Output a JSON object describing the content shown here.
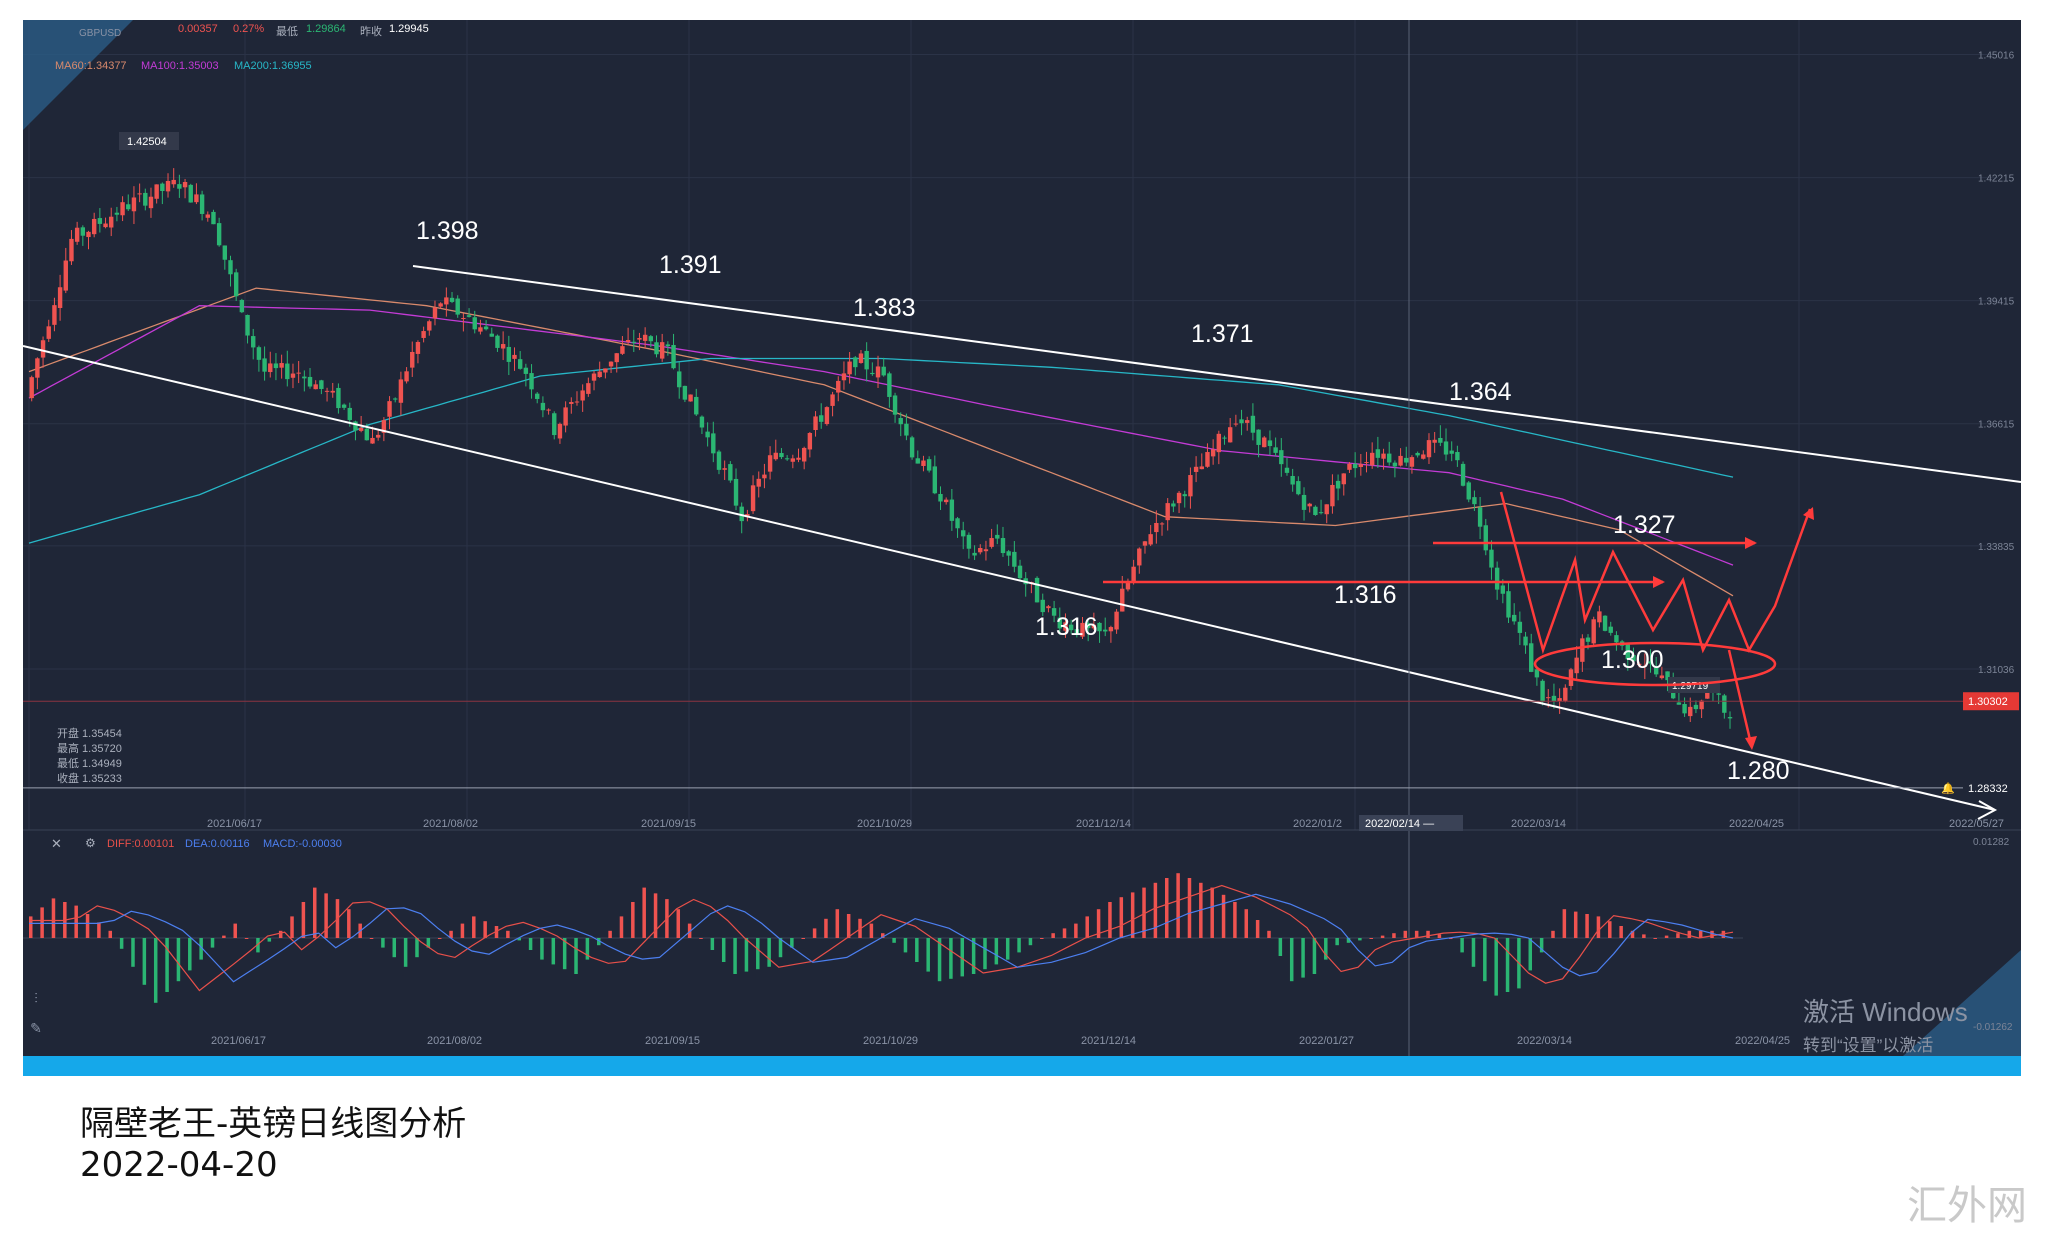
{
  "header": {
    "symbol": "GBPUSD",
    "change": "0.00357",
    "change_pct": "0.27%",
    "low_label": "最低",
    "low_value": "1.29864",
    "prev_close_label": "昨收",
    "prev_close_value": "1.29945",
    "ma60": "MA60:1.34377",
    "ma100": "MA100:1.35003",
    "ma200": "MA200:1.36955"
  },
  "ohlc_panel": {
    "open": "开盘 1.35454",
    "high": "最高 1.35720",
    "low": "最低 1.34949",
    "close": "收盘 1.35233"
  },
  "colors": {
    "background": "#1f2637",
    "bull": "#ef5350",
    "bear": "#2bb673",
    "ma60": "#d98a6c",
    "ma100": "#c33bd6",
    "ma200": "#27b7c7",
    "annotation": "#ff3b3b",
    "channel": "#ffffff",
    "diff": "#e8504a",
    "dea": "#4c7ff0"
  },
  "chart_data": {
    "type": "candlestick",
    "title": "",
    "y_ticks": [
      "1.45016",
      "1.42215",
      "1.39415",
      "1.36615",
      "1.33835",
      "1.31036"
    ],
    "ylim": [
      1.276,
      1.458
    ],
    "x_tick_labels": [
      "2021/06/17",
      "2021/08/02",
      "2021/09/15",
      "2021/10/29",
      "2021/12/14",
      "2022/01/2",
      "2022/03/14",
      "2022/04/25",
      "2022/05/27"
    ],
    "crosshair_date": "2022/02/14 —",
    "current_price": "1.30302",
    "alert_price": "1.28332",
    "high_marker": "1.42504",
    "low_marker": "1.29719",
    "annotations": [
      "1.398",
      "1.391",
      "1.383",
      "1.371",
      "1.364",
      "1.316",
      "1.316",
      "1.327",
      "1.300",
      "1.280"
    ],
    "price_anchors": [
      [
        0,
        1.372
      ],
      [
        8,
        1.408
      ],
      [
        18,
        1.416
      ],
      [
        27,
        1.421
      ],
      [
        33,
        1.413
      ],
      [
        38,
        1.39
      ],
      [
        42,
        1.378
      ],
      [
        48,
        1.378
      ],
      [
        55,
        1.371
      ],
      [
        61,
        1.362
      ],
      [
        65,
        1.372
      ],
      [
        68,
        1.382
      ],
      [
        73,
        1.394
      ],
      [
        78,
        1.39
      ],
      [
        83,
        1.385
      ],
      [
        88,
        1.378
      ],
      [
        93,
        1.365
      ],
      [
        98,
        1.374
      ],
      [
        103,
        1.381
      ],
      [
        108,
        1.386
      ],
      [
        113,
        1.382
      ],
      [
        118,
        1.368
      ],
      [
        123,
        1.355
      ],
      [
        126,
        1.345
      ],
      [
        131,
        1.358
      ],
      [
        136,
        1.36
      ],
      [
        141,
        1.37
      ],
      [
        146,
        1.381
      ],
      [
        151,
        1.377
      ],
      [
        156,
        1.36
      ],
      [
        161,
        1.35
      ],
      [
        166,
        1.336
      ],
      [
        171,
        1.34
      ],
      [
        176,
        1.33
      ],
      [
        181,
        1.322
      ],
      [
        186,
        1.319
      ],
      [
        190,
        1.318
      ],
      [
        194,
        1.33
      ],
      [
        198,
        1.342
      ],
      [
        203,
        1.35
      ],
      [
        208,
        1.358
      ],
      [
        213,
        1.368
      ],
      [
        218,
        1.362
      ],
      [
        223,
        1.352
      ],
      [
        227,
        1.345
      ],
      [
        232,
        1.355
      ],
      [
        237,
        1.36
      ],
      [
        242,
        1.358
      ],
      [
        247,
        1.361
      ],
      [
        251,
        1.36
      ],
      [
        256,
        1.344
      ],
      [
        259,
        1.33
      ],
      [
        263,
        1.318
      ],
      [
        267,
        1.304
      ],
      [
        270,
        1.302
      ],
      [
        274,
        1.316
      ],
      [
        277,
        1.322
      ],
      [
        281,
        1.315
      ],
      [
        285,
        1.312
      ],
      [
        290,
        1.305
      ],
      [
        293,
        1.3
      ],
      [
        296,
        1.306
      ],
      [
        299,
        1.301
      ]
    ],
    "series": [
      {
        "name": "MA60",
        "values": [
          [
            0,
            1.378
          ],
          [
            40,
            1.397
          ],
          [
            70,
            1.393
          ],
          [
            110,
            1.383
          ],
          [
            140,
            1.375
          ],
          [
            170,
            1.36
          ],
          [
            200,
            1.345
          ],
          [
            230,
            1.343
          ],
          [
            260,
            1.348
          ],
          [
            280,
            1.342
          ],
          [
            300,
            1.327
          ]
        ]
      },
      {
        "name": "MA100",
        "values": [
          [
            0,
            1.372
          ],
          [
            30,
            1.393
          ],
          [
            60,
            1.392
          ],
          [
            110,
            1.384
          ],
          [
            140,
            1.378
          ],
          [
            170,
            1.37
          ],
          [
            210,
            1.36
          ],
          [
            250,
            1.355
          ],
          [
            270,
            1.349
          ],
          [
            300,
            1.334
          ]
        ]
      },
      {
        "name": "MA200",
        "values": [
          [
            0,
            1.339
          ],
          [
            30,
            1.35
          ],
          [
            60,
            1.366
          ],
          [
            90,
            1.377
          ],
          [
            120,
            1.381
          ],
          [
            150,
            1.381
          ],
          [
            180,
            1.379
          ],
          [
            220,
            1.375
          ],
          [
            250,
            1.368
          ],
          [
            300,
            1.354
          ]
        ]
      }
    ]
  },
  "macd": {
    "diff_label": "DIFF:0.00101",
    "dea_label": "DEA:0.00116",
    "macd_label": "MACD:-0.00030",
    "top_tick": "0.01282",
    "bottom_tick": "-0.01262",
    "x_tick_labels": [
      "2021/06/17",
      "2021/08/02",
      "2021/09/15",
      "2021/10/29",
      "2021/12/14",
      "2022/01/27",
      "2022/03/14",
      "2022/04/25"
    ],
    "hist_anchors": [
      [
        0,
        0.3
      ],
      [
        4,
        0.55
      ],
      [
        8,
        0.45
      ],
      [
        14,
        0.1
      ],
      [
        18,
        -0.4
      ],
      [
        22,
        -0.9
      ],
      [
        26,
        -0.6
      ],
      [
        30,
        -0.3
      ],
      [
        36,
        0.2
      ],
      [
        40,
        -0.2
      ],
      [
        44,
        0.1
      ],
      [
        50,
        0.7
      ],
      [
        55,
        0.5
      ],
      [
        60,
        0.0
      ],
      [
        66,
        -0.4
      ],
      [
        72,
        0.0
      ],
      [
        78,
        0.3
      ],
      [
        84,
        0.1
      ],
      [
        90,
        -0.3
      ],
      [
        96,
        -0.5
      ],
      [
        102,
        0.1
      ],
      [
        108,
        0.7
      ],
      [
        113,
        0.5
      ],
      [
        118,
        0.0
      ],
      [
        124,
        -0.5
      ],
      [
        130,
        -0.4
      ],
      [
        136,
        0.0
      ],
      [
        142,
        0.4
      ],
      [
        148,
        0.2
      ],
      [
        154,
        -0.2
      ],
      [
        160,
        -0.6
      ],
      [
        166,
        -0.5
      ],
      [
        172,
        -0.3
      ],
      [
        178,
        0.0
      ],
      [
        184,
        0.2
      ],
      [
        190,
        0.5
      ],
      [
        196,
        0.7
      ],
      [
        202,
        0.9
      ],
      [
        208,
        0.7
      ],
      [
        214,
        0.4
      ],
      [
        218,
        0.1
      ],
      [
        222,
        -0.6
      ],
      [
        226,
        -0.5
      ],
      [
        230,
        -0.1
      ],
      [
        236,
        0.0
      ],
      [
        242,
        0.1
      ],
      [
        246,
        0.1
      ],
      [
        250,
        0.0
      ],
      [
        254,
        -0.4
      ],
      [
        258,
        -0.8
      ],
      [
        262,
        -0.7
      ],
      [
        266,
        -0.2
      ],
      [
        270,
        0.4
      ],
      [
        276,
        0.3
      ],
      [
        282,
        0.1
      ],
      [
        286,
        0.0
      ],
      [
        292,
        0.1
      ],
      [
        299,
        0.1
      ]
    ]
  },
  "windows_notice": {
    "line1": "激活 Windows",
    "line2": "转到“设置”以激活 Windows。"
  },
  "caption": {
    "title": "隔壁老王-英镑日线图分析",
    "date": "2022-04-20"
  },
  "watermark": "汇外网"
}
